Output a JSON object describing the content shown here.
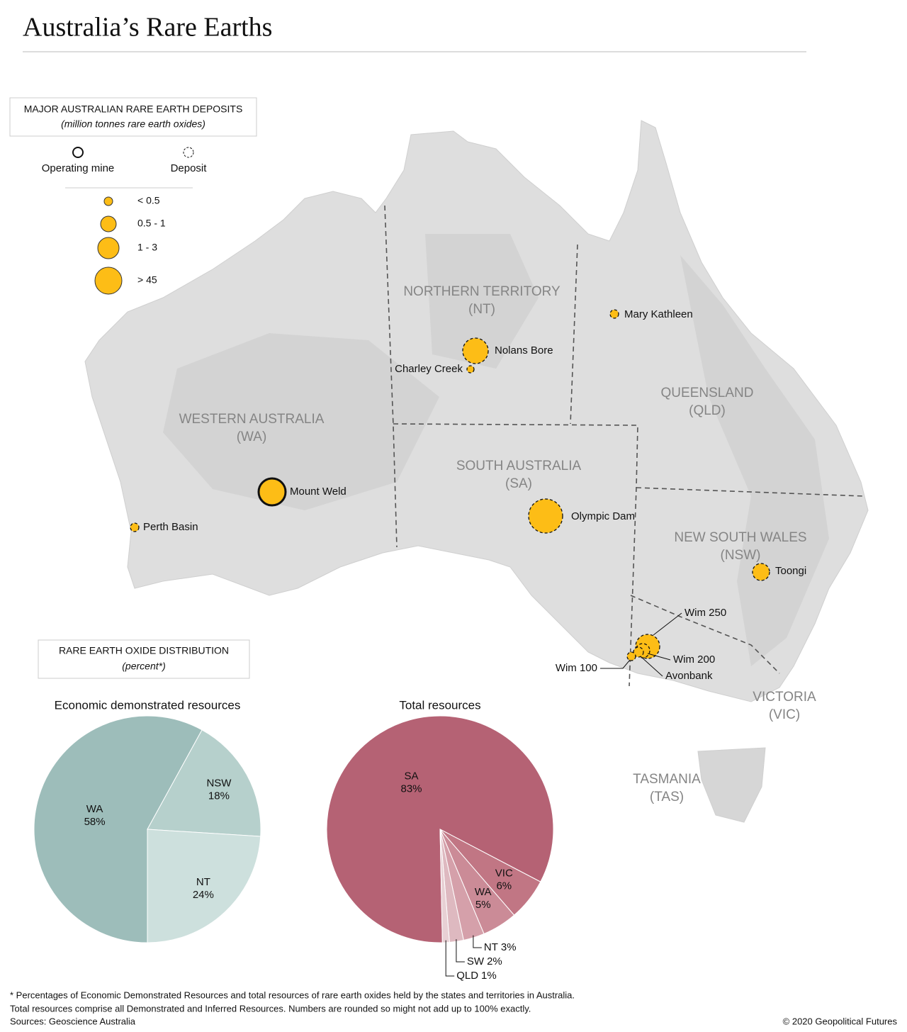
{
  "title": "Australia’s Rare Earths",
  "legend": {
    "title": "MAJOR AUSTRALIAN RARE EARTH DEPOSITS",
    "subtitle": "(million tonnes rare earth oxides)",
    "types": [
      "Operating mine",
      "Deposit"
    ],
    "sizes": [
      "< 0.5",
      "0.5 - 1",
      "1 - 3",
      "> 45"
    ]
  },
  "regions": [
    {
      "name": "WESTERN AUSTRALIA",
      "abbr": "(WA)"
    },
    {
      "name": "NORTHERN TERRITORY",
      "abbr": "(NT)"
    },
    {
      "name": "SOUTH AUSTRALIA",
      "abbr": "(SA)"
    },
    {
      "name": "QUEENSLAND",
      "abbr": "(QLD)"
    },
    {
      "name": "NEW SOUTH WALES",
      "abbr": "(NSW)"
    },
    {
      "name": "VICTORIA",
      "abbr": "(VIC)"
    },
    {
      "name": "TASMANIA",
      "abbr": "(TAS)"
    }
  ],
  "sites": [
    "Mount Weld",
    "Perth Basin",
    "Nolans Bore",
    "Charley Creek",
    "Mary Kathleen",
    "Olympic Dam",
    "Toongi",
    "Wim 250",
    "Wim 200",
    "Avonbank",
    "Wim 100"
  ],
  "distribution": {
    "title": "RARE EARTH OXIDE DISTRIBUTION",
    "subtitle": "(percent*)"
  },
  "chart_data": [
    {
      "type": "pie",
      "title": "Economic demonstrated resources",
      "categories": [
        "WA",
        "NSW",
        "NT"
      ],
      "values": [
        58,
        18,
        24
      ],
      "value_labels": [
        "58%",
        "18%",
        "24%"
      ],
      "colors": [
        "#9dbdba",
        "#b6d0cc",
        "#cde0dd"
      ]
    },
    {
      "type": "pie",
      "title": "Total resources",
      "categories": [
        "SA",
        "VIC",
        "WA",
        "NT",
        "SW",
        "QLD"
      ],
      "values": [
        83,
        6,
        5,
        3,
        2,
        1
      ],
      "value_labels": [
        "83%",
        "6%",
        "5%",
        "3%",
        "2%",
        "1%"
      ],
      "colors": [
        "#b56274",
        "#c17684",
        "#cb8b97",
        "#d5a0aa",
        "#deb9c0",
        "#e8d0d4"
      ]
    }
  ],
  "footnote": [
    "* Percentages of Economic Demonstrated Resources and total resources of rare earth oxides held by the states and territories in Australia.",
    "Total resources comprise all Demonstrated and Inferred Resources. Numbers are rounded so might not add up to 100% exactly.",
    "Sources: Geoscience Australia"
  ],
  "credit": "© 2020 Geopolitical Futures"
}
